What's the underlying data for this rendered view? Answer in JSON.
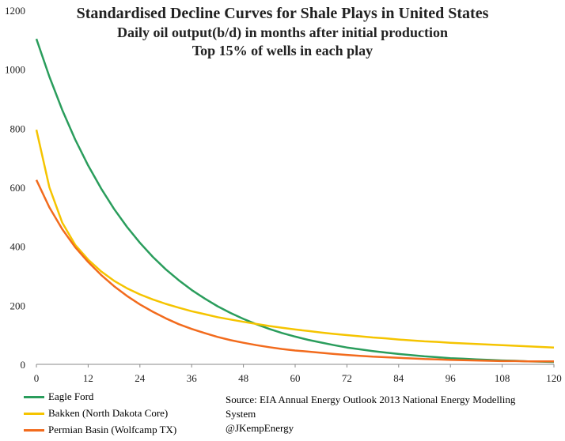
{
  "header": {
    "title": "Standardised Decline Curves for Shale Plays in United States",
    "subtitle1": "Daily oil output(b/d) in months after initial production",
    "subtitle2": "Top 15% of wells in each play"
  },
  "source": {
    "line1": "Source: EIA Annual Energy Outlook 2013 National Energy Modelling",
    "line2": "System",
    "line3": "@JKempEnergy"
  },
  "chart_data": {
    "type": "line",
    "xlim": [
      0,
      120
    ],
    "ylim": [
      0,
      1200
    ],
    "x_ticks": [
      0,
      12,
      24,
      36,
      48,
      60,
      72,
      84,
      96,
      108,
      120
    ],
    "y_ticks": [
      0,
      200,
      400,
      600,
      800,
      1000,
      1200
    ],
    "grid": false,
    "legend_position": "bottom-left",
    "x": [
      0,
      3,
      6,
      9,
      12,
      15,
      18,
      21,
      24,
      27,
      30,
      33,
      36,
      39,
      42,
      45,
      48,
      51,
      54,
      57,
      60,
      63,
      66,
      69,
      72,
      75,
      78,
      81,
      84,
      87,
      90,
      93,
      96,
      99,
      102,
      105,
      108,
      111,
      114,
      117,
      120
    ],
    "series": [
      {
        "name": "Eagle Ford",
        "color": "#2a9d5c",
        "values": [
          1103,
          975,
          862,
          762,
          674,
          596,
          527,
          466,
          412,
          364,
          322,
          285,
          252,
          223,
          197,
          174,
          154,
          136,
          120,
          106,
          94,
          83,
          74,
          65,
          57,
          51,
          45,
          40,
          35,
          31,
          27,
          24,
          21,
          19,
          17,
          15,
          13,
          12,
          10,
          9,
          8
        ]
      },
      {
        "name": "Bakken (North Dakota Core)",
        "color": "#f5c400",
        "values": [
          795,
          600,
          480,
          405,
          355,
          315,
          283,
          258,
          237,
          220,
          205,
          192,
          180,
          170,
          160,
          152,
          144,
          137,
          130,
          124,
          118,
          113,
          108,
          103,
          99,
          95,
          91,
          88,
          84,
          81,
          78,
          76,
          73,
          71,
          69,
          67,
          65,
          63,
          61,
          59,
          57
        ]
      },
      {
        "name": "Permian Basin (Wolfcamp TX)",
        "color": "#f26b1d",
        "values": [
          625,
          532,
          458,
          397,
          347,
          303,
          265,
          232,
          203,
          178,
          156,
          136,
          120,
          106,
          93,
          82,
          73,
          65,
          58,
          52,
          47,
          43,
          39,
          35,
          32,
          29,
          26,
          24,
          22,
          20,
          18,
          17,
          15,
          14,
          13,
          12,
          11,
          11,
          10,
          10,
          10
        ]
      }
    ]
  }
}
